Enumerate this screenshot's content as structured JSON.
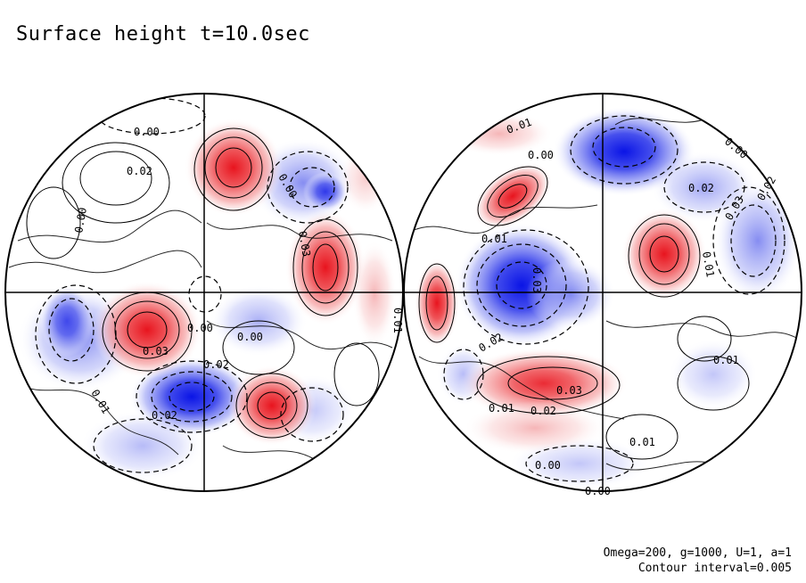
{
  "title": "Surface height t=10.0sec",
  "params": {
    "line1": "Omega=200, g=1000, U=1, a=1",
    "line2": "Contour interval=0.005"
  },
  "colors": {
    "positive": "#e8141e",
    "negative": "#0a14e6",
    "neutral": "#ffffff"
  },
  "map": {
    "left_hemisphere": {
      "contour_labels": [
        "0.00",
        "0.02",
        "0.00",
        "0.00",
        "0.03",
        "0.02",
        "0.00",
        "0.02",
        "0.03",
        "0.01",
        "0.00",
        "0.01"
      ],
      "features": [
        {
          "name": "high-upper-right",
          "sign": "positive",
          "value": 0.03
        },
        {
          "name": "high-right",
          "sign": "positive",
          "value": 0.03
        },
        {
          "name": "high-lower-left",
          "sign": "positive",
          "value": 0.03
        },
        {
          "name": "high-lower-right",
          "sign": "positive",
          "value": 0.03
        },
        {
          "name": "low-bottom-center",
          "sign": "negative",
          "value": -0.03
        },
        {
          "name": "low-left",
          "sign": "negative",
          "value": -0.02
        },
        {
          "name": "low-upper-right",
          "sign": "negative",
          "value": -0.02
        }
      ]
    },
    "right_hemisphere": {
      "contour_labels": [
        "0.01",
        "0.00",
        "0.01",
        "0.02",
        "0.03",
        "0.03",
        "0.01",
        "0.02",
        "0.01",
        "0.00",
        "0.02",
        "0.03",
        "0.01",
        "0.02",
        "0.01",
        "0.00",
        "0.00"
      ],
      "features": [
        {
          "name": "high-upper-left",
          "sign": "positive",
          "value": 0.03
        },
        {
          "name": "high-right",
          "sign": "positive",
          "value": 0.03
        },
        {
          "name": "high-left-edge",
          "sign": "positive",
          "value": 0.03
        },
        {
          "name": "high-lower-band",
          "sign": "positive",
          "value": 0.02
        },
        {
          "name": "low-center",
          "sign": "negative",
          "value": -0.03
        },
        {
          "name": "low-top",
          "sign": "negative",
          "value": -0.03
        },
        {
          "name": "low-right",
          "sign": "negative",
          "value": -0.02
        }
      ]
    }
  }
}
